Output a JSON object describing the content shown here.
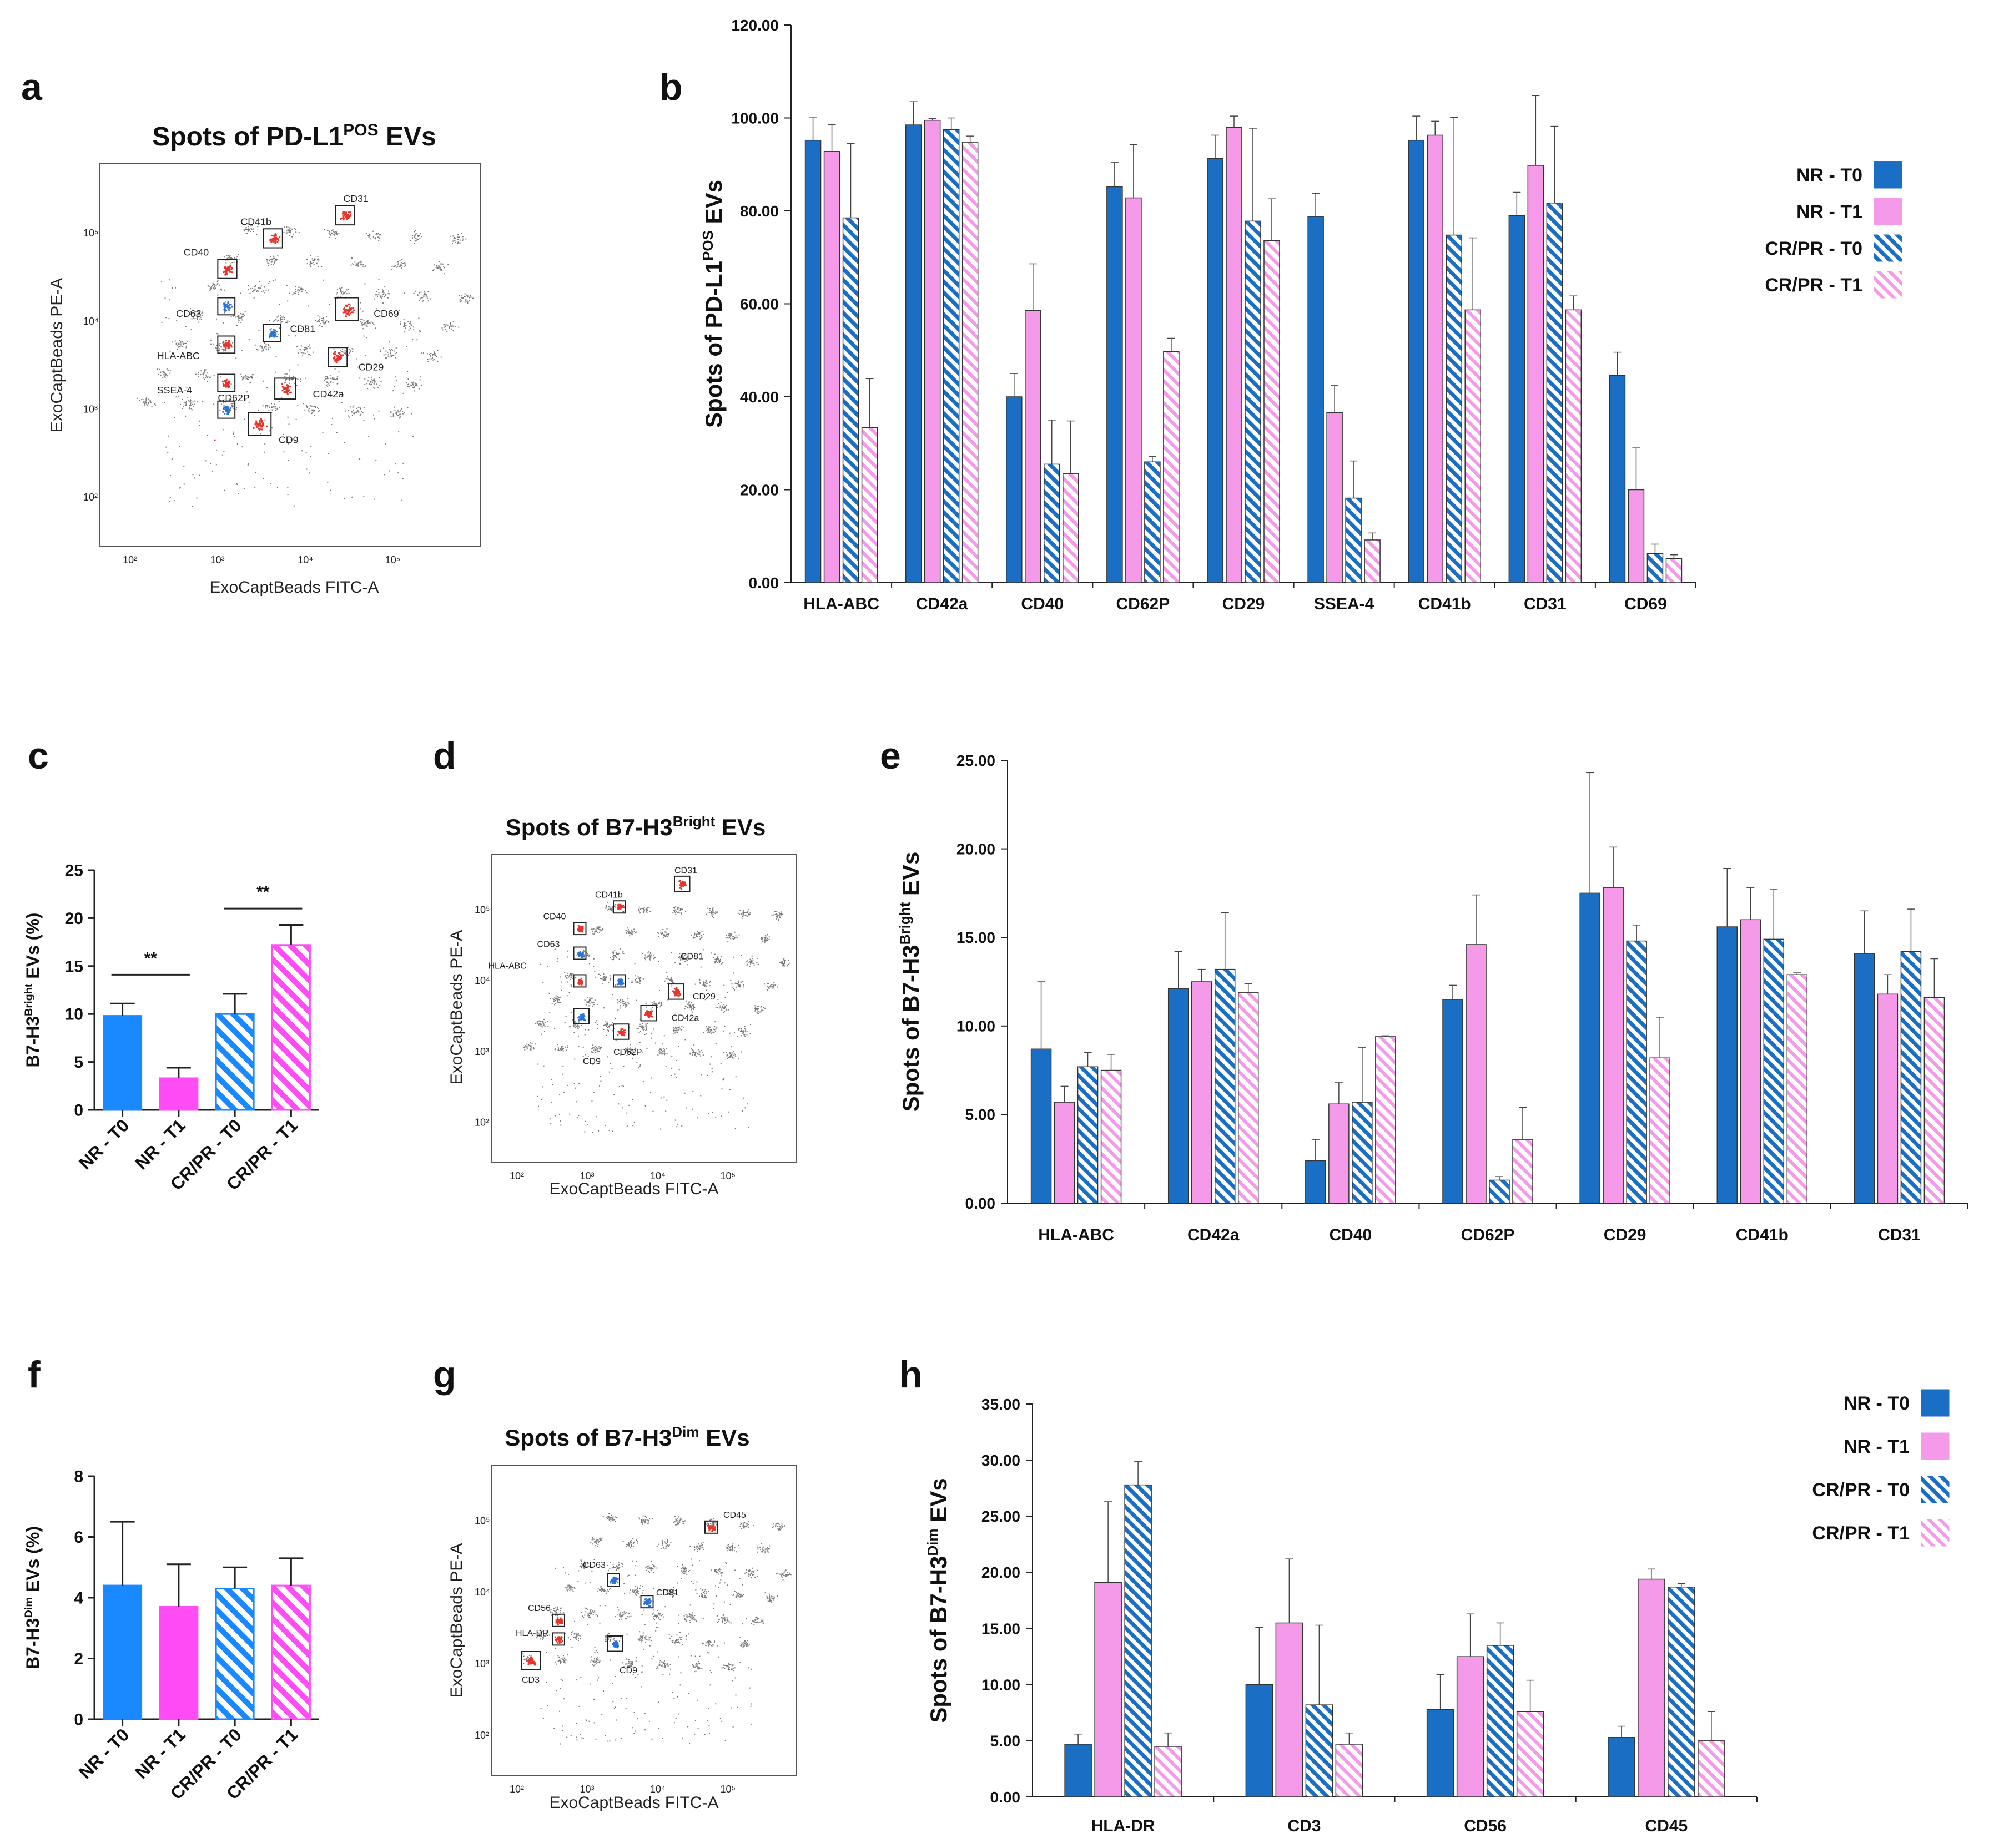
{
  "colors": {
    "nr_t0": "#1a6fc4",
    "nr_t1": "#f59ae8",
    "crpr_t0": "#1a6fc4",
    "crpr_t1": "#f59ae8",
    "bar_c_nr_t0": "#1a88ff",
    "bar_c_nr_t1": "#ff4cf5",
    "scatter_red": "#e8332a",
    "scatter_blue": "#2a72d6"
  },
  "legend": {
    "items": [
      "NR - T0",
      "NR - T1",
      "CR/PR - T0",
      "CR/PR - T1"
    ]
  },
  "panels": {
    "a": {
      "letter": "a",
      "title_main": "Spots of PD-L1",
      "title_sup": "POS",
      "title_tail": " EVs",
      "xlabel": "ExoCaptBeads FITC-A",
      "ylabel": "ExoCaptBeads PE-A",
      "spot_labels": [
        "CD31",
        "CD41b",
        "CD40",
        "CD63",
        "CD81",
        "CD69",
        "HLA-ABC",
        "SSEA-4",
        "CD29",
        "CD42a",
        "CD62P",
        "CD9"
      ]
    },
    "b": {
      "letter": "b"
    },
    "c": {
      "letter": "c",
      "sig": [
        "**",
        "**"
      ]
    },
    "d": {
      "letter": "d",
      "title_main": "Spots of B7-H3",
      "title_sup": "Bright",
      "title_tail": " EVs",
      "xlabel": "ExoCaptBeads FITC-A",
      "ylabel": "ExoCaptBeads PE-A",
      "spot_labels": [
        "CD31",
        "CD41b",
        "CD40",
        "CD63",
        "HLA-ABC",
        "CD81",
        "CD29",
        "CD42a",
        "CD62P",
        "CD9"
      ]
    },
    "e": {
      "letter": "e"
    },
    "f": {
      "letter": "f"
    },
    "g": {
      "letter": "g",
      "title_main": "Spots of B7-H3",
      "title_sup": "Dim",
      "title_tail": " EVs",
      "xlabel": "ExoCaptBeads FITC-A",
      "ylabel": "ExoCaptBeads PE-A",
      "spot_labels": [
        "CD45",
        "CD63",
        "CD81",
        "CD56",
        "HLA-DR",
        "CD9",
        "CD3"
      ]
    },
    "h": {
      "letter": "h"
    }
  },
  "chart_data": [
    {
      "id": "b",
      "type": "bar",
      "ylabel_main": "Spots of PD-L1",
      "ylabel_sup": "POS",
      "ylabel_tail": " EVs",
      "ylim": [
        0,
        120
      ],
      "yticks": [
        "0.00",
        "20.00",
        "40.00",
        "60.00",
        "80.00",
        "100.00",
        "120.00"
      ],
      "categories": [
        "HLA-ABC",
        "CD42a",
        "CD40",
        "CD62P",
        "CD29",
        "SSEA-4",
        "CD41b",
        "CD31",
        "CD69"
      ],
      "series": [
        {
          "name": "NR - T0",
          "values": [
            95.2,
            98.5,
            40.0,
            85.2,
            91.3,
            78.8,
            95.2,
            79.0,
            44.6
          ],
          "err": [
            5.0,
            5.0,
            5.0,
            5.2,
            5.0,
            5.0,
            5.2,
            5.0,
            5.0
          ]
        },
        {
          "name": "NR - T1",
          "values": [
            92.8,
            99.5,
            58.6,
            82.8,
            98.0,
            36.6,
            96.3,
            89.8,
            20.0
          ],
          "err": [
            5.8,
            0.4,
            10.0,
            11.5,
            2.4,
            5.8,
            3.0,
            15.0,
            9.0
          ]
        },
        {
          "name": "CR/PR - T0",
          "values": [
            78.5,
            97.5,
            25.5,
            26.0,
            77.8,
            18.2,
            74.8,
            81.7,
            6.3
          ],
          "err": [
            16.0,
            2.5,
            9.5,
            1.2,
            20.0,
            8.0,
            25.3,
            16.5,
            2.0
          ]
        },
        {
          "name": "CR/PR - T1",
          "values": [
            33.4,
            94.8,
            23.5,
            49.7,
            73.6,
            9.2,
            58.7,
            58.7,
            5.2
          ],
          "err": [
            10.5,
            1.3,
            11.3,
            2.9,
            9.0,
            1.5,
            15.5,
            3.0,
            0.8
          ]
        }
      ]
    },
    {
      "id": "c",
      "type": "bar",
      "ylabel_main": "B7-H3",
      "ylabel_sup": "Bright",
      "ylabel_tail": " EVs (%)",
      "ylim": [
        0,
        25
      ],
      "yticks": [
        "0",
        "5",
        "10",
        "15",
        "20",
        "25"
      ],
      "categories": [
        "NR - T0",
        "NR - T1",
        "CR/PR - T0",
        "CR/PR - T1"
      ],
      "values": [
        9.8,
        3.3,
        10.0,
        17.2
      ],
      "err": [
        1.3,
        1.1,
        2.1,
        2.1
      ]
    },
    {
      "id": "e",
      "type": "bar",
      "ylabel_main": "Spots of B7-H3",
      "ylabel_sup": "Bright",
      "ylabel_tail": " EVs",
      "ylim": [
        0,
        25
      ],
      "yticks": [
        "0.00",
        "5.00",
        "10.00",
        "15.00",
        "20.00",
        "25.00"
      ],
      "categories": [
        "HLA-ABC",
        "CD42a",
        "CD40",
        "CD62P",
        "CD29",
        "CD41b",
        "CD31"
      ],
      "series": [
        {
          "name": "NR - T0",
          "values": [
            8.7,
            12.1,
            2.4,
            11.5,
            17.5,
            15.6,
            14.1
          ],
          "err": [
            3.8,
            2.1,
            1.2,
            0.8,
            6.8,
            3.3,
            2.4
          ]
        },
        {
          "name": "NR - T1",
          "values": [
            5.7,
            12.5,
            5.6,
            14.6,
            17.8,
            16.0,
            11.8
          ],
          "err": [
            0.9,
            0.7,
            1.2,
            2.8,
            2.3,
            1.8,
            1.1
          ]
        },
        {
          "name": "CR/PR - T0",
          "values": [
            7.7,
            13.2,
            5.7,
            1.3,
            14.8,
            14.9,
            14.2
          ],
          "err": [
            0.8,
            3.2,
            3.1,
            0.2,
            0.9,
            2.8,
            2.4
          ]
        },
        {
          "name": "CR/PR - T1",
          "values": [
            7.5,
            11.9,
            9.4,
            3.6,
            8.2,
            12.9,
            11.6
          ],
          "err": [
            0.9,
            0.5,
            0.05,
            1.8,
            2.3,
            0.1,
            2.2
          ]
        }
      ]
    },
    {
      "id": "f",
      "type": "bar",
      "ylabel_main": "B7-H3",
      "ylabel_sup": "Dim",
      "ylabel_tail": " EVs (%)",
      "ylim": [
        0,
        8
      ],
      "yticks": [
        "0",
        "2",
        "4",
        "6",
        "8"
      ],
      "categories": [
        "NR - T0",
        "NR - T1",
        "CR/PR - T0",
        "CR/PR - T1"
      ],
      "values": [
        4.4,
        3.7,
        4.3,
        4.4
      ],
      "err": [
        2.1,
        1.4,
        0.7,
        0.9
      ]
    },
    {
      "id": "h",
      "type": "bar",
      "ylabel_main": "Spots of B7-H3",
      "ylabel_sup": "Dim",
      "ylabel_tail": " EVs",
      "ylim": [
        0,
        35
      ],
      "yticks": [
        "0.00",
        "5.00",
        "10.00",
        "15.00",
        "20.00",
        "25.00",
        "30.00",
        "35.00"
      ],
      "categories": [
        "HLA-DR",
        "CD3",
        "CD56",
        "CD45"
      ],
      "series": [
        {
          "name": "NR - T0",
          "values": [
            4.7,
            10.0,
            7.8,
            5.3
          ],
          "err": [
            0.9,
            5.1,
            3.1,
            1.0
          ]
        },
        {
          "name": "NR - T1",
          "values": [
            19.1,
            15.5,
            12.5,
            19.4
          ],
          "err": [
            7.2,
            5.7,
            3.8,
            0.9
          ]
        },
        {
          "name": "CR/PR - T0",
          "values": [
            27.8,
            8.2,
            13.5,
            18.7
          ],
          "err": [
            2.1,
            7.1,
            2.0,
            0.3
          ]
        },
        {
          "name": "CR/PR - T1",
          "values": [
            4.5,
            4.7,
            7.6,
            5.0
          ],
          "err": [
            1.2,
            1.0,
            2.8,
            2.6
          ]
        }
      ]
    }
  ]
}
